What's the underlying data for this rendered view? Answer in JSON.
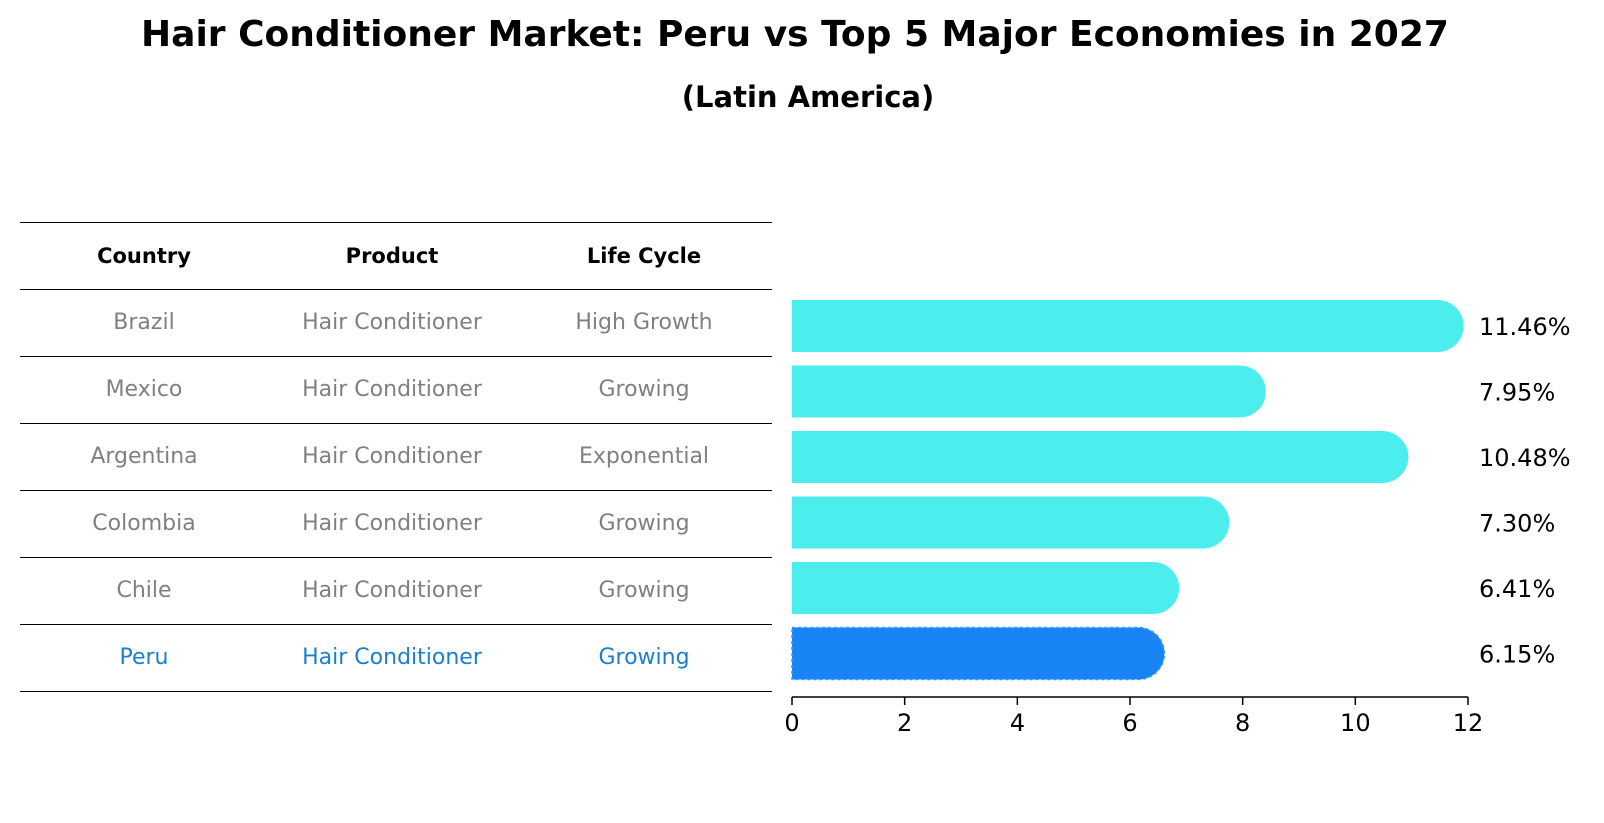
{
  "title": "Hair Conditioner Market: Peru vs Top 5 Major Economies in 2027",
  "subtitle": "(Latin America)",
  "table": {
    "headers": [
      "Country",
      "Product",
      "Life Cycle"
    ],
    "rows": [
      {
        "country": "Brazil",
        "product": "Hair Conditioner",
        "life_cycle": "High Growth"
      },
      {
        "country": "Mexico",
        "product": "Hair Conditioner",
        "life_cycle": "Growing"
      },
      {
        "country": "Argentina",
        "product": "Hair Conditioner",
        "life_cycle": "Exponential"
      },
      {
        "country": "Colombia",
        "product": "Hair Conditioner",
        "life_cycle": "Growing"
      },
      {
        "country": "Chile",
        "product": "Hair Conditioner",
        "life_cycle": "Growing"
      },
      {
        "country": "Peru",
        "product": "Hair Conditioner",
        "life_cycle": "Growing"
      }
    ]
  },
  "chart_data": {
    "type": "bar",
    "orientation": "horizontal",
    "categories": [
      "Brazil",
      "Mexico",
      "Argentina",
      "Colombia",
      "Chile",
      "Peru"
    ],
    "values": [
      11.46,
      7.95,
      10.48,
      7.3,
      6.41,
      6.15
    ],
    "value_labels": [
      "11.46%",
      "7.95%",
      "10.48%",
      "7.30%",
      "6.41%",
      "6.15%"
    ],
    "highlight_category": "Peru",
    "xlim": [
      0,
      12
    ],
    "xticks": [
      0,
      2,
      4,
      6,
      8,
      10,
      12
    ],
    "xtick_labels": [
      "0",
      "2",
      "4",
      "6",
      "8",
      "10",
      "12"
    ],
    "xlabel": "",
    "ylabel": "",
    "grid": false,
    "colors": {
      "default": "#4beeec",
      "highlight": "#1783f5"
    }
  },
  "colors": {
    "muted_text": "#808080",
    "highlight_text": "#1a7fd0"
  }
}
